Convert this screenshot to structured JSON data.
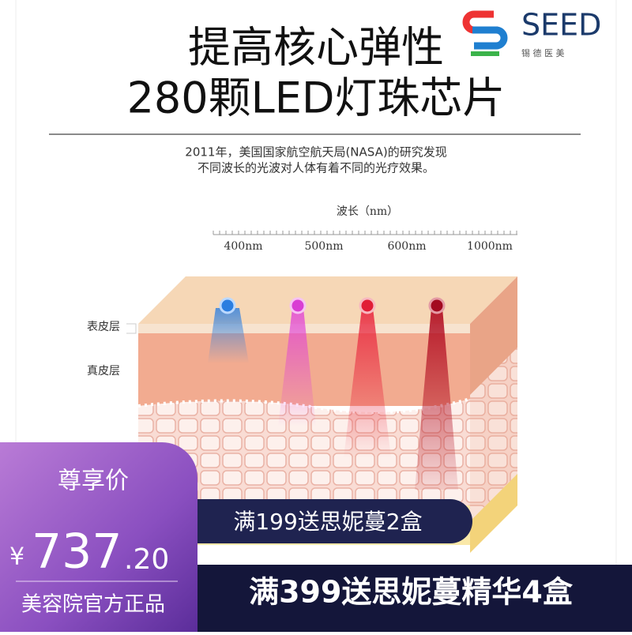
{
  "title": {
    "line1": "提高核心弹性",
    "line2": "280颗LED灯珠芯片"
  },
  "logo": {
    "brand": "SEED",
    "sub": "锡 德 医 美"
  },
  "intro": {
    "line1": "2011年，美国国家航空航天局(NASA)的研究发现",
    "line2": "不同波长的光波对人体有着不同的光疗效果。"
  },
  "scale": {
    "label": "波长（nm）",
    "wavelengths": [
      "400nm",
      "500nm",
      "600nm",
      "1000nm"
    ]
  },
  "layers": [
    "表皮层",
    "真皮层"
  ],
  "badge": {
    "title": "尊享价",
    "currency": "¥",
    "price_int": "737",
    "price_dec": ".20",
    "note": "美容院官方正品"
  },
  "promos": [
    "满199送思妮蔓2盒",
    "满399送思妮蔓精华4盒"
  ]
}
